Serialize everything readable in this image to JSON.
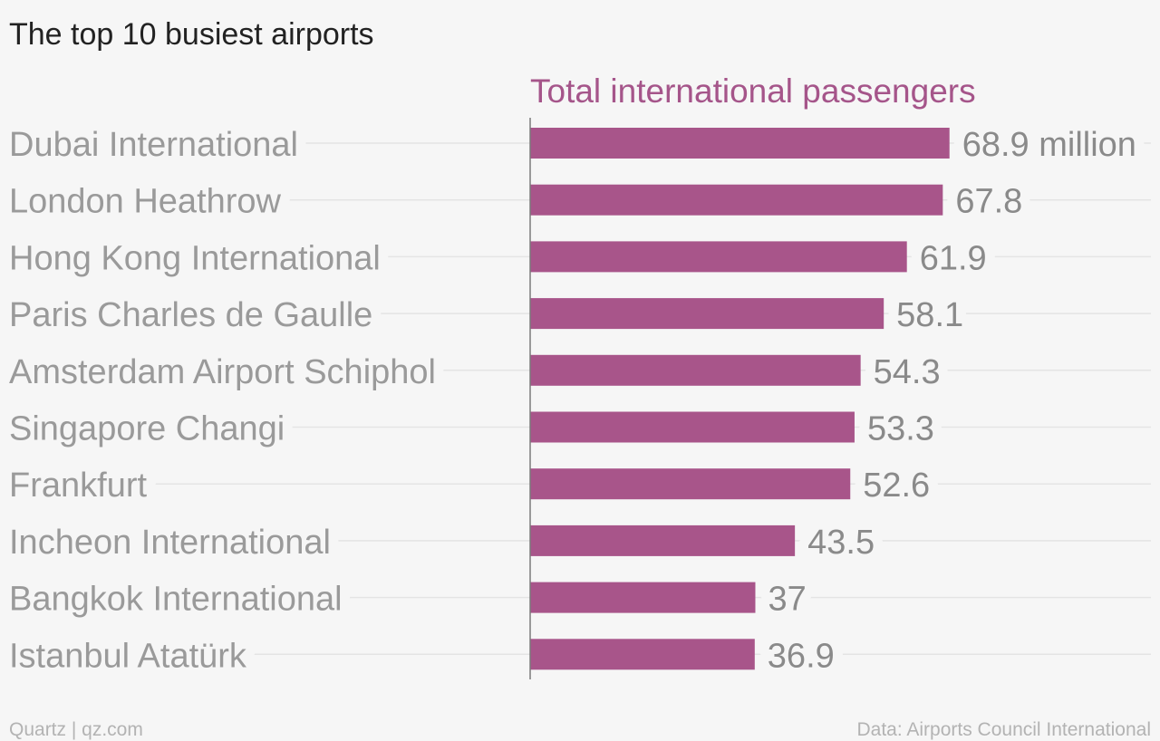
{
  "header": {
    "title": "The top 10 busiest airports"
  },
  "footer": {
    "credit": "Quartz | qz.com",
    "source": "Data: Airports Council International"
  },
  "colors": {
    "background": "#f6f6f6",
    "bar": "#a8558a",
    "series_header": "#a5558a",
    "axis_line": "#7a7a7a",
    "gridline": "#e4e4e4",
    "category_text": "#9a9a9a",
    "value_text": "#8a8a8a",
    "title_text": "#222222",
    "footer_text": "#b3b3b3"
  },
  "chart_data": {
    "type": "bar",
    "orientation": "horizontal",
    "title": "The top 10 busiest airports",
    "series_header": "Total international passengers",
    "categories": [
      "Dubai International",
      "London Heathrow",
      "Hong Kong International",
      "Paris Charles de Gaulle",
      "Amsterdam Airport Schiphol",
      "Singapore Changi",
      "Frankfurt",
      "Incheon International",
      "Bangkok International",
      "Istanbul Atatürk"
    ],
    "series": [
      {
        "name": "Total international passengers",
        "values": [
          68.9,
          67.8,
          61.9,
          58.1,
          54.3,
          53.3,
          52.6,
          43.5,
          37,
          36.9
        ]
      }
    ],
    "value_labels": [
      "68.9 million",
      "67.8",
      "61.9",
      "58.1",
      "54.3",
      "53.3",
      "52.6",
      "43.5",
      "37",
      "36.9"
    ],
    "unit": "million",
    "xlim": [
      0,
      102
    ],
    "grid": true,
    "legend": "none",
    "source": "Data: Airports Council International"
  }
}
